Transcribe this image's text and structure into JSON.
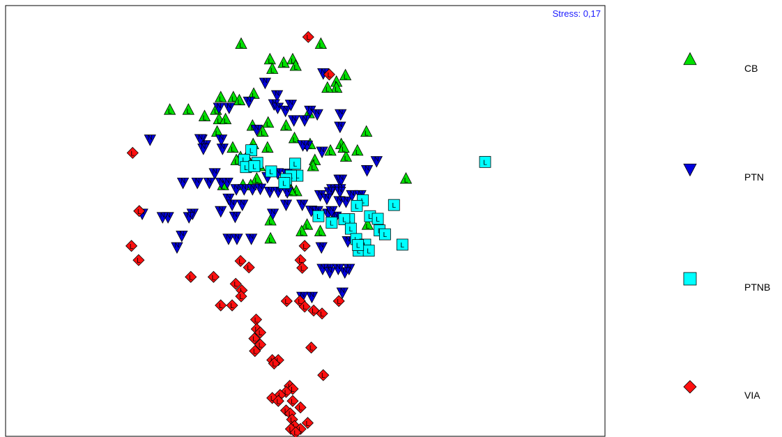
{
  "chart_data": {
    "type": "scatter",
    "title": "",
    "xlabel": "",
    "ylabel": "",
    "stress_label": "Stress: 0,17",
    "xlim": [
      0,
      1
    ],
    "ylim": [
      0,
      1
    ],
    "grid": false,
    "legend_position": "right",
    "series": [
      {
        "name": "CB",
        "marker": "triangle-up",
        "color": "#00e000",
        "letter": "L",
        "points": [
          [
            0.393,
            0.91
          ],
          [
            0.526,
            0.91
          ],
          [
            0.441,
            0.874
          ],
          [
            0.479,
            0.874
          ],
          [
            0.464,
            0.866
          ],
          [
            0.484,
            0.859
          ],
          [
            0.445,
            0.852
          ],
          [
            0.567,
            0.837
          ],
          [
            0.552,
            0.822
          ],
          [
            0.359,
            0.786
          ],
          [
            0.552,
            0.808
          ],
          [
            0.537,
            0.808
          ],
          [
            0.414,
            0.794
          ],
          [
            0.38,
            0.786
          ],
          [
            0.39,
            0.779
          ],
          [
            0.274,
            0.757
          ],
          [
            0.305,
            0.757
          ],
          [
            0.351,
            0.757
          ],
          [
            0.332,
            0.742
          ],
          [
            0.506,
            0.749
          ],
          [
            0.356,
            0.735
          ],
          [
            0.367,
            0.735
          ],
          [
            0.438,
            0.727
          ],
          [
            0.468,
            0.72
          ],
          [
            0.602,
            0.706
          ],
          [
            0.429,
            0.706
          ],
          [
            0.412,
            0.72
          ],
          [
            0.353,
            0.706
          ],
          [
            0.56,
            0.677
          ],
          [
            0.587,
            0.662
          ],
          [
            0.482,
            0.691
          ],
          [
            0.508,
            0.677
          ],
          [
            0.413,
            0.677
          ],
          [
            0.379,
            0.669
          ],
          [
            0.402,
            0.648
          ],
          [
            0.437,
            0.669
          ],
          [
            0.516,
            0.64
          ],
          [
            0.568,
            0.648
          ],
          [
            0.564,
            0.669
          ],
          [
            0.542,
            0.662
          ],
          [
            0.513,
            0.626
          ],
          [
            0.668,
            0.597
          ],
          [
            0.424,
            0.626
          ],
          [
            0.419,
            0.597
          ],
          [
            0.472,
            0.582
          ],
          [
            0.485,
            0.568
          ],
          [
            0.363,
            0.582
          ],
          [
            0.396,
            0.582
          ],
          [
            0.476,
            0.568
          ],
          [
            0.409,
            0.582
          ],
          [
            0.442,
            0.5
          ],
          [
            0.442,
            0.458
          ],
          [
            0.503,
            0.49
          ],
          [
            0.494,
            0.475
          ],
          [
            0.604,
            0.49
          ],
          [
            0.525,
            0.475
          ],
          [
            0.404,
            0.641
          ],
          [
            0.392,
            0.647
          ],
          [
            0.385,
            0.64
          ]
        ]
      },
      {
        "name": "PTN",
        "marker": "triangle-down",
        "color": "#0000dd",
        "letter": "N",
        "points": [
          [
            0.53,
            0.844
          ],
          [
            0.433,
            0.822
          ],
          [
            0.453,
            0.793
          ],
          [
            0.448,
            0.772
          ],
          [
            0.406,
            0.778
          ],
          [
            0.454,
            0.764
          ],
          [
            0.467,
            0.757
          ],
          [
            0.508,
            0.757
          ],
          [
            0.476,
            0.771
          ],
          [
            0.559,
            0.749
          ],
          [
            0.356,
            0.764
          ],
          [
            0.373,
            0.764
          ],
          [
            0.52,
            0.749
          ],
          [
            0.558,
            0.72
          ],
          [
            0.499,
            0.735
          ],
          [
            0.481,
            0.735
          ],
          [
            0.419,
            0.713
          ],
          [
            0.241,
            0.69
          ],
          [
            0.327,
            0.69
          ],
          [
            0.36,
            0.69
          ],
          [
            0.333,
            0.677
          ],
          [
            0.325,
            0.691
          ],
          [
            0.33,
            0.669
          ],
          [
            0.362,
            0.669
          ],
          [
            0.503,
            0.676
          ],
          [
            0.496,
            0.677
          ],
          [
            0.528,
            0.662
          ],
          [
            0.619,
            0.64
          ],
          [
            0.603,
            0.619
          ],
          [
            0.557,
            0.597
          ],
          [
            0.545,
            0.575
          ],
          [
            0.558,
            0.575
          ],
          [
            0.56,
            0.597
          ],
          [
            0.558,
            0.569
          ],
          [
            0.541,
            0.568
          ],
          [
            0.469,
            0.611
          ],
          [
            0.454,
            0.612
          ],
          [
            0.437,
            0.603
          ],
          [
            0.296,
            0.59
          ],
          [
            0.32,
            0.59
          ],
          [
            0.34,
            0.59
          ],
          [
            0.349,
            0.612
          ],
          [
            0.36,
            0.59
          ],
          [
            0.37,
            0.59
          ],
          [
            0.385,
            0.575
          ],
          [
            0.398,
            0.575
          ],
          [
            0.412,
            0.575
          ],
          [
            0.425,
            0.576
          ],
          [
            0.441,
            0.569
          ],
          [
            0.455,
            0.569
          ],
          [
            0.47,
            0.568
          ],
          [
            0.525,
            0.561
          ],
          [
            0.536,
            0.553
          ],
          [
            0.557,
            0.547
          ],
          [
            0.568,
            0.546
          ],
          [
            0.578,
            0.561
          ],
          [
            0.592,
            0.561
          ],
          [
            0.468,
            0.539
          ],
          [
            0.495,
            0.539
          ],
          [
            0.51,
            0.525
          ],
          [
            0.538,
            0.518
          ],
          [
            0.551,
            0.511
          ],
          [
            0.372,
            0.553
          ],
          [
            0.378,
            0.539
          ],
          [
            0.383,
            0.511
          ],
          [
            0.395,
            0.539
          ],
          [
            0.446,
            0.518
          ],
          [
            0.52,
            0.524
          ],
          [
            0.544,
            0.524
          ],
          [
            0.312,
            0.518
          ],
          [
            0.271,
            0.51
          ],
          [
            0.306,
            0.51
          ],
          [
            0.228,
            0.518
          ],
          [
            0.262,
            0.51
          ],
          [
            0.359,
            0.524
          ],
          [
            0.41,
            0.46
          ],
          [
            0.372,
            0.46
          ],
          [
            0.386,
            0.46
          ],
          [
            0.527,
            0.44
          ],
          [
            0.571,
            0.454
          ],
          [
            0.599,
            0.44
          ],
          [
            0.573,
            0.39
          ],
          [
            0.539,
            0.39
          ],
          [
            0.566,
            0.382
          ],
          [
            0.555,
            0.39
          ],
          [
            0.529,
            0.39
          ],
          [
            0.541,
            0.382
          ],
          [
            0.294,
            0.467
          ],
          [
            0.286,
            0.44
          ],
          [
            0.511,
            0.325
          ],
          [
            0.495,
            0.325
          ],
          [
            0.562,
            0.335
          ]
        ]
      },
      {
        "name": "PTNB",
        "marker": "square",
        "color": "#00ffff",
        "letter": "L",
        "points": [
          [
            0.41,
            0.664
          ],
          [
            0.398,
            0.642
          ],
          [
            0.401,
            0.625
          ],
          [
            0.443,
            0.615
          ],
          [
            0.483,
            0.633
          ],
          [
            0.487,
            0.605
          ],
          [
            0.476,
            0.605
          ],
          [
            0.468,
            0.597
          ],
          [
            0.465,
            0.588
          ],
          [
            0.8,
            0.637
          ],
          [
            0.596,
            0.548
          ],
          [
            0.648,
            0.537
          ],
          [
            0.586,
            0.535
          ],
          [
            0.608,
            0.511
          ],
          [
            0.621,
            0.505
          ],
          [
            0.522,
            0.511
          ],
          [
            0.544,
            0.496
          ],
          [
            0.573,
            0.504
          ],
          [
            0.565,
            0.504
          ],
          [
            0.576,
            0.482
          ],
          [
            0.585,
            0.458
          ],
          [
            0.624,
            0.478
          ],
          [
            0.633,
            0.469
          ],
          [
            0.6,
            0.445
          ],
          [
            0.662,
            0.445
          ],
          [
            0.589,
            0.431
          ],
          [
            0.606,
            0.431
          ],
          [
            0.588,
            0.444
          ],
          [
            0.42,
            0.635
          ],
          [
            0.415,
            0.627
          ]
        ]
      },
      {
        "name": "VIA",
        "marker": "diamond",
        "color": "#ff1010",
        "letter": "L",
        "points": [
          [
            0.505,
            0.927
          ],
          [
            0.54,
            0.84
          ],
          [
            0.212,
            0.658
          ],
          [
            0.223,
            0.523
          ],
          [
            0.21,
            0.442
          ],
          [
            0.222,
            0.409
          ],
          [
            0.499,
            0.442
          ],
          [
            0.392,
            0.407
          ],
          [
            0.406,
            0.392
          ],
          [
            0.492,
            0.409
          ],
          [
            0.495,
            0.391
          ],
          [
            0.309,
            0.37
          ],
          [
            0.347,
            0.37
          ],
          [
            0.384,
            0.354
          ],
          [
            0.394,
            0.339
          ],
          [
            0.393,
            0.325
          ],
          [
            0.359,
            0.304
          ],
          [
            0.378,
            0.304
          ],
          [
            0.469,
            0.314
          ],
          [
            0.491,
            0.314
          ],
          [
            0.499,
            0.301
          ],
          [
            0.514,
            0.292
          ],
          [
            0.528,
            0.285
          ],
          [
            0.556,
            0.314
          ],
          [
            0.418,
            0.271
          ],
          [
            0.419,
            0.249
          ],
          [
            0.425,
            0.241
          ],
          [
            0.415,
            0.227
          ],
          [
            0.425,
            0.213
          ],
          [
            0.416,
            0.198
          ],
          [
            0.51,
            0.206
          ],
          [
            0.445,
            0.177
          ],
          [
            0.455,
            0.177
          ],
          [
            0.448,
            0.169
          ],
          [
            0.53,
            0.142
          ],
          [
            0.474,
            0.117
          ],
          [
            0.479,
            0.11
          ],
          [
            0.468,
            0.103
          ],
          [
            0.458,
            0.096
          ],
          [
            0.445,
            0.089
          ],
          [
            0.455,
            0.082
          ],
          [
            0.479,
            0.082
          ],
          [
            0.492,
            0.067
          ],
          [
            0.468,
            0.06
          ],
          [
            0.475,
            0.053
          ],
          [
            0.478,
            0.039
          ],
          [
            0.504,
            0.031
          ],
          [
            0.482,
            0.024
          ],
          [
            0.492,
            0.017
          ],
          [
            0.476,
            0.017
          ],
          [
            0.484,
            0.009
          ]
        ]
      }
    ]
  }
}
